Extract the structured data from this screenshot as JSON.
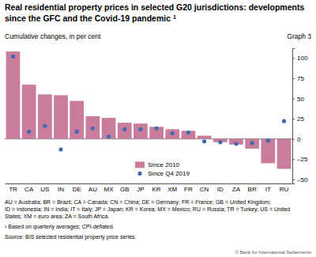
{
  "chart_data": {
    "type": "bar",
    "title": "Real residential property prices in selected G20 jurisdictions: developments since the GFC and the Covid-19 pandemic",
    "title_note": "1",
    "subtitle": "Cumulative changes, in per cent",
    "graph_label": "Graph 3",
    "categories": [
      "TR",
      "CA",
      "US",
      "IN",
      "DE",
      "AU",
      "MX",
      "GB",
      "JP",
      "KR",
      "XM",
      "FR",
      "CN",
      "ID",
      "ZA",
      "BR",
      "IT",
      "RU"
    ],
    "series": [
      {
        "name": "Since 2010",
        "type": "bar",
        "color": "#c97d9b",
        "values": [
          108,
          67,
          55,
          54,
          47,
          28,
          26,
          20,
          19,
          15,
          12,
          10,
          4,
          -4,
          -7,
          -12,
          -30,
          -37
        ]
      },
      {
        "name": "Since Q4 2019",
        "type": "scatter",
        "marker": "circle",
        "color": "#3e6bb3",
        "values": [
          102,
          9,
          16,
          -13,
          9,
          13,
          3,
          12,
          12,
          13,
          7,
          8,
          -3,
          -4,
          -6,
          -5,
          -2,
          22
        ]
      }
    ],
    "ylim": [
      -55,
      112
    ],
    "yticks": [
      {
        "value": -50,
        "label": "–50"
      },
      {
        "value": -25,
        "label": "–25"
      },
      0,
      25,
      50,
      75,
      100
    ],
    "grid": false,
    "legend": "bottom",
    "abbreviations": [
      "AU = Australia; BR = Brazil; CA = Canada; CN = China; DE = Germany; FR = France; GB = United Kingdom;",
      "ID = Indonesia; IN = India; IT = Italy; JP = Japan; KR = Korea; MX = Mexico; RU = Russia; TR = Turkey; US = United",
      "States; XM = euro area; ZA = South Africa."
    ],
    "footnote": "¹ Based on quarterly averages; CPI-deflated.",
    "source": "Source: BIS selected residential property price series.",
    "copyright": "© Bank for International Settlements"
  }
}
